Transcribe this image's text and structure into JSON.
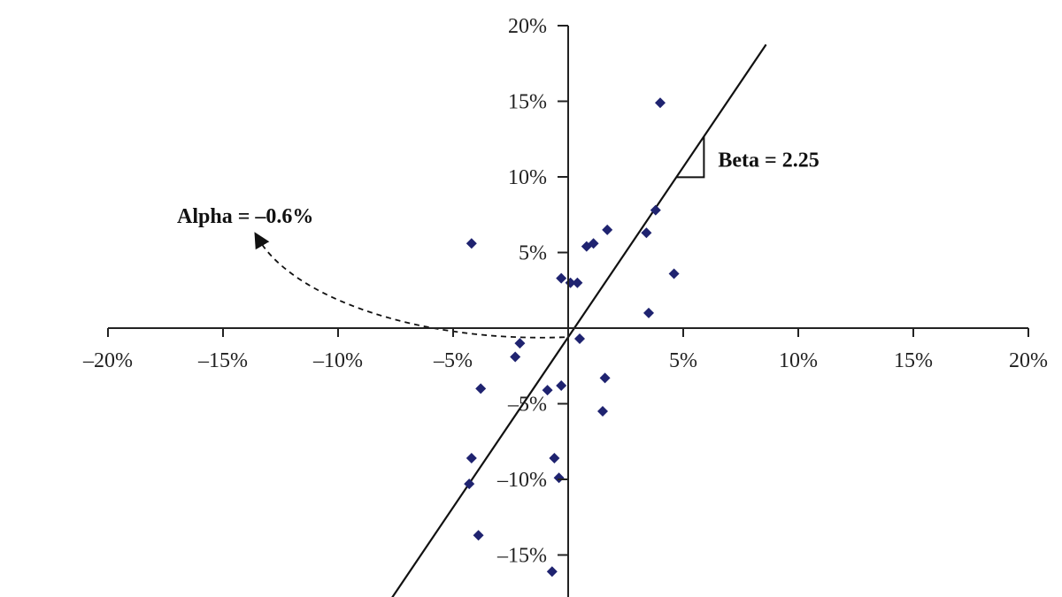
{
  "chart_data": {
    "type": "scatter",
    "title": "",
    "xlabel": "",
    "ylabel": "",
    "xlim": [
      -20,
      20
    ],
    "ylim": [
      -17.5,
      20
    ],
    "x_ticks": [
      -20,
      -15,
      -10,
      -5,
      5,
      10,
      15,
      20
    ],
    "x_tick_labels": [
      "–20%",
      "–15%",
      "–10%",
      "–5%",
      "5%",
      "10%",
      "15%",
      "20%"
    ],
    "y_ticks": [
      20,
      15,
      10,
      5,
      -5,
      -10,
      -15
    ],
    "y_tick_labels": [
      "20%",
      "15%",
      "10%",
      "5%",
      "–5%",
      "–10%",
      "–15%"
    ],
    "series": [
      {
        "marker": "diamond",
        "color": "#1f2370",
        "points": [
          {
            "x": -4.2,
            "y": 5.6
          },
          {
            "x": -0.3,
            "y": 3.3
          },
          {
            "x": 0.1,
            "y": 3.0
          },
          {
            "x": 0.4,
            "y": 3.0
          },
          {
            "x": 0.8,
            "y": 5.4
          },
          {
            "x": 1.1,
            "y": 5.6
          },
          {
            "x": 1.7,
            "y": 6.5
          },
          {
            "x": 3.4,
            "y": 6.3
          },
          {
            "x": 3.8,
            "y": 7.8
          },
          {
            "x": 3.5,
            "y": 1.0
          },
          {
            "x": 4.6,
            "y": 3.6
          },
          {
            "x": 4.0,
            "y": 14.9
          },
          {
            "x": 0.5,
            "y": -0.7
          },
          {
            "x": -2.1,
            "y": -1.0
          },
          {
            "x": -2.3,
            "y": -1.9
          },
          {
            "x": -3.8,
            "y": -4.0
          },
          {
            "x": -0.9,
            "y": -4.1
          },
          {
            "x": -0.3,
            "y": -3.8
          },
          {
            "x": 1.6,
            "y": -3.3
          },
          {
            "x": 1.5,
            "y": -5.5
          },
          {
            "x": -4.2,
            "y": -8.6
          },
          {
            "x": -0.6,
            "y": -8.6
          },
          {
            "x": -0.4,
            "y": -9.9
          },
          {
            "x": -4.3,
            "y": -10.3
          },
          {
            "x": -3.9,
            "y": -13.7
          },
          {
            "x": -0.7,
            "y": -16.1
          }
        ]
      }
    ],
    "regression": {
      "alpha": -0.6,
      "beta": 2.25
    },
    "annotations": {
      "beta_label": "Beta = 2.25",
      "alpha_label": "Alpha = –0.6%"
    },
    "grid": false,
    "legend": "none"
  }
}
